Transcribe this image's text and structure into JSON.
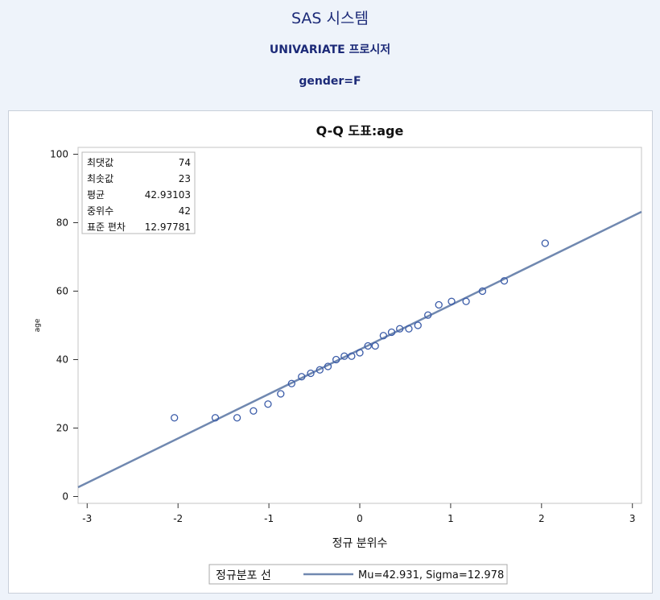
{
  "header": {
    "system_title": "SAS 시스템",
    "procedure_title": "UNIVARIATE 프로시저",
    "by_group": "gender=F"
  },
  "chart_data": {
    "type": "scatter",
    "title": "Q-Q 도표:age",
    "xlabel": "정규 분위수",
    "ylabel": "age",
    "xlim": [
      -3.1,
      3.1
    ],
    "ylim": [
      -2,
      102
    ],
    "x_ticks": [
      -3,
      -2,
      -1,
      0,
      1,
      2,
      3
    ],
    "y_ticks": [
      0,
      20,
      40,
      60,
      80,
      100
    ],
    "grid": false,
    "colors": {
      "marker": "#3a5ba8",
      "line": "#7088b0",
      "frame": "#c4c4c4"
    },
    "series": [
      {
        "points": [
          [
            -2.04,
            23
          ],
          [
            -1.59,
            23
          ],
          [
            -1.35,
            23
          ],
          [
            -1.17,
            25
          ],
          [
            -1.01,
            27
          ],
          [
            -0.87,
            30
          ],
          [
            -0.75,
            33
          ],
          [
            -0.64,
            35
          ],
          [
            -0.54,
            36
          ],
          [
            -0.44,
            37
          ],
          [
            -0.35,
            38
          ],
          [
            -0.26,
            40
          ],
          [
            -0.17,
            41
          ],
          [
            -0.09,
            41
          ],
          [
            0.0,
            42
          ],
          [
            0.09,
            44
          ],
          [
            0.17,
            44
          ],
          [
            0.26,
            47
          ],
          [
            0.35,
            48
          ],
          [
            0.44,
            49
          ],
          [
            0.54,
            49
          ],
          [
            0.64,
            50
          ],
          [
            0.75,
            53
          ],
          [
            0.87,
            56
          ],
          [
            1.01,
            57
          ],
          [
            1.17,
            57
          ],
          [
            1.35,
            60
          ],
          [
            1.59,
            63
          ],
          [
            2.04,
            74
          ]
        ]
      }
    ],
    "reference_line": {
      "mu": 42.931,
      "sigma": 12.978
    },
    "stats_box": [
      {
        "label": "최댓값",
        "value": "74"
      },
      {
        "label": "최솟값",
        "value": "23"
      },
      {
        "label": "평균",
        "value": "42.93103"
      },
      {
        "label": "중위수",
        "value": "42"
      },
      {
        "label": "표준 편차",
        "value": "12.97781"
      }
    ],
    "legend": {
      "position": "bottom",
      "label": "정규분포 선",
      "entry": "Mu=42.931, Sigma=12.978"
    }
  }
}
